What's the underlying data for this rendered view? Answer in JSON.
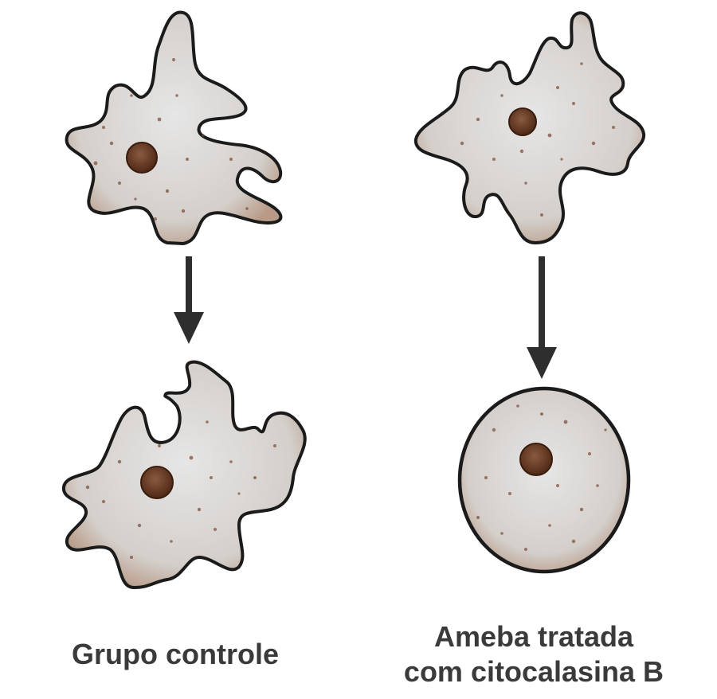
{
  "figure": {
    "columns": [
      {
        "id": "control",
        "caption_lines": [
          "Grupo controle"
        ]
      },
      {
        "id": "treated",
        "caption_lines": [
          "Ameba tratada",
          "com citocalasina B"
        ]
      }
    ],
    "colors": {
      "background": "#ffffff",
      "cytoplasm": "#d9d9d9",
      "membrane": "#1b1b1b",
      "membrane_tint": "#8b5a3a",
      "granules": "#7a4a33",
      "nucleus": "#6a3a22",
      "arrow": "#2e2e2e",
      "text": "#3a3a3a"
    },
    "icons": [
      "amoeba-icon",
      "round-cell-icon",
      "down-arrow-icon"
    ]
  }
}
